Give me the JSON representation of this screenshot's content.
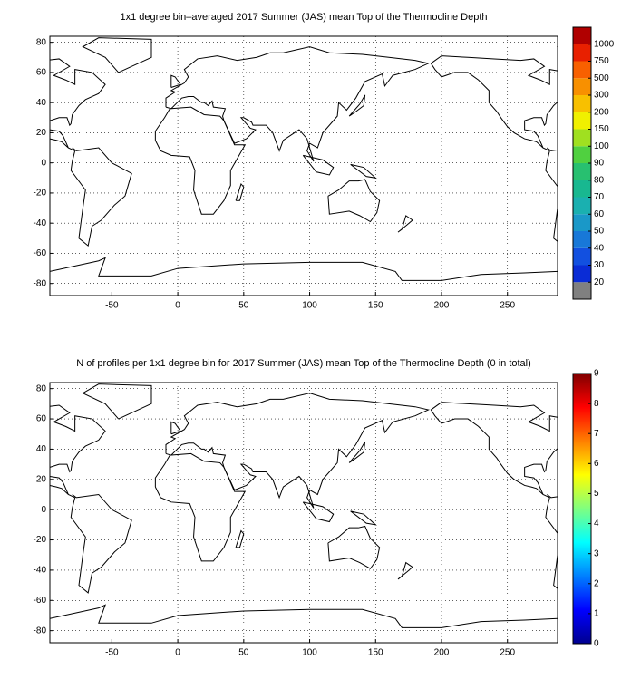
{
  "chart_data": [
    {
      "type": "map",
      "title": "1x1 degree bin–averaged 2017 Summer (JAS) mean Top of the Thermocline Depth",
      "xlim": [
        -97,
        288
      ],
      "ylim": [
        -88,
        84
      ],
      "xticks": [
        -50,
        0,
        50,
        100,
        150,
        200,
        250
      ],
      "yticks": [
        -80,
        -60,
        -40,
        -20,
        0,
        20,
        40,
        60,
        80
      ],
      "grid": true,
      "colorbar": {
        "ticks": [
          20,
          30,
          40,
          50,
          60,
          70,
          80,
          90,
          100,
          150,
          200,
          300,
          500,
          750,
          1000
        ],
        "colors": [
          "#808080",
          "#0a2cd6",
          "#1250e0",
          "#1878d8",
          "#1a98c8",
          "#1ab0b0",
          "#18b890",
          "#28c070",
          "#50d040",
          "#a0e020",
          "#f0f000",
          "#f8c000",
          "#f89000",
          "#f86000",
          "#e82000",
          "#b00000"
        ]
      }
    },
    {
      "type": "map",
      "title": "N of profiles per 1x1 degree bin for 2017 Summer (JAS) mean Top of the Thermocline Depth  (0 in total)",
      "xlim": [
        -97,
        288
      ],
      "ylim": [
        -88,
        84
      ],
      "xticks": [
        -50,
        0,
        50,
        100,
        150,
        200,
        250
      ],
      "yticks": [
        -80,
        -60,
        -40,
        -20,
        0,
        20,
        40,
        60,
        80
      ],
      "grid": true,
      "colorbar": {
        "lim": [
          0,
          9
        ],
        "ticks": [
          0,
          1,
          2,
          3,
          4,
          5,
          6,
          7,
          8,
          9
        ],
        "colormap": "jet"
      }
    }
  ]
}
